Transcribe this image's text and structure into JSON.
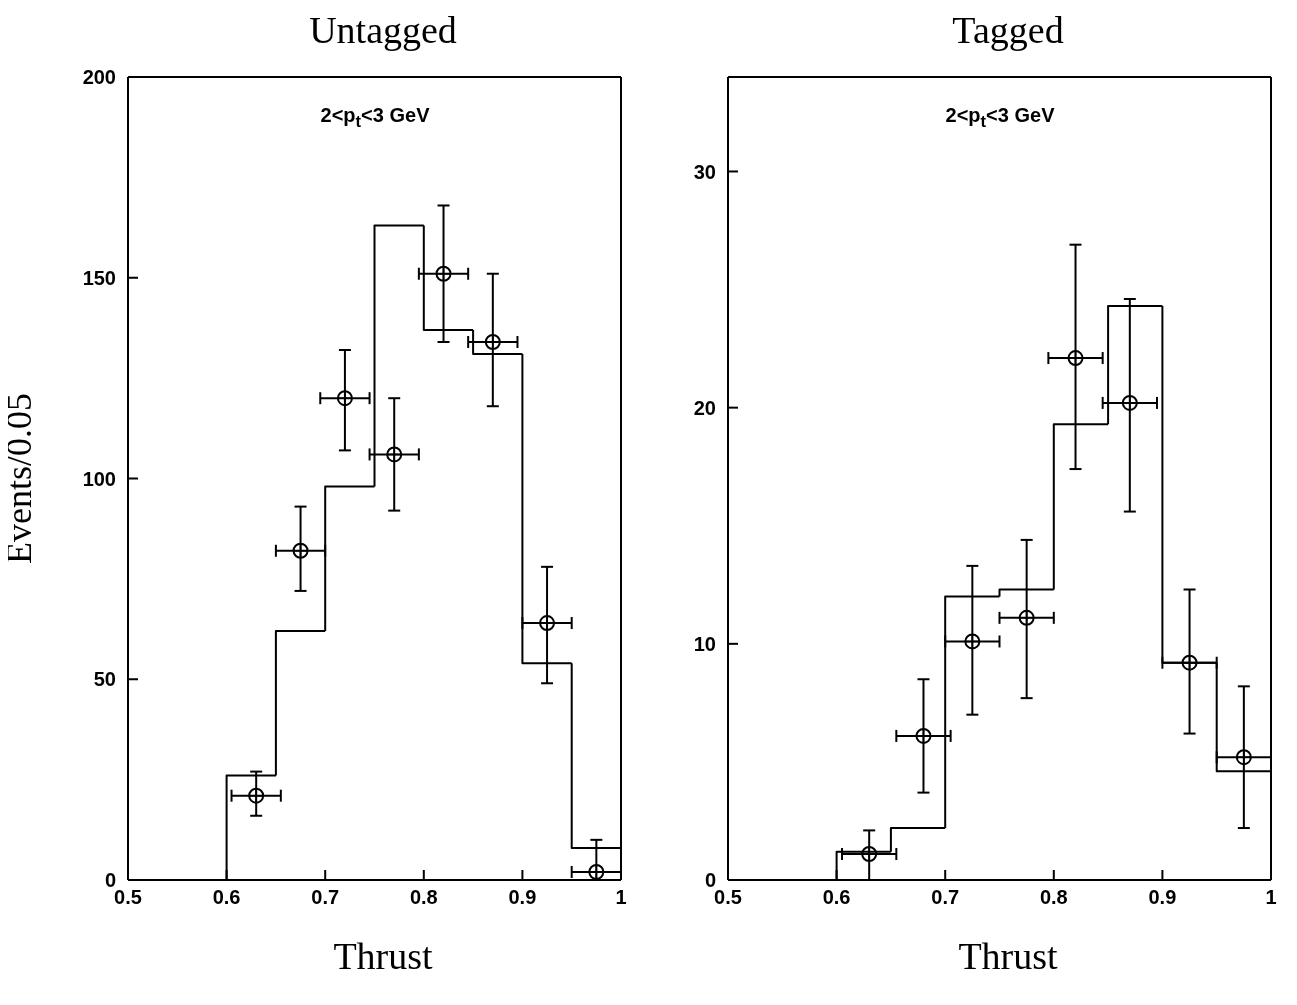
{
  "chart_data": [
    {
      "type": "histogram",
      "title": "Untagged",
      "xlabel": "Thrust",
      "ylabel": "Events/0.05",
      "annotations": [
        "2<p$_{t}$<3 GeV"
      ],
      "bins": [
        0.6,
        0.65,
        0.7,
        0.75,
        0.8,
        0.85,
        0.9,
        0.95,
        1
      ],
      "values": [
        26,
        62,
        98,
        163,
        137,
        131,
        54,
        8
      ],
      "color": "#000000",
      "series": [
        {
          "type": "scatter",
          "x": [
            0.63,
            0.675,
            0.72,
            0.77,
            0.82,
            0.87,
            0.925,
            0.975
          ],
          "values": [
            21,
            82,
            120,
            106,
            151,
            134,
            64,
            2
          ],
          "errors": [
            [
              16,
              27
            ],
            [
              72,
              93
            ],
            [
              107,
              132
            ],
            [
              92,
              120
            ],
            [
              134,
              168
            ],
            [
              118,
              151
            ],
            [
              49,
              78
            ],
            [
              0,
              10
            ]
          ],
          "xerrors": [
            0.025,
            0.025,
            0.025,
            0.025,
            0.025,
            0.025,
            0.025,
            0.025
          ],
          "color": "#000000",
          "marker": "circle"
        }
      ],
      "xlim": [
        0.5,
        1
      ],
      "xticks": [
        0.5,
        0.6,
        0.7,
        0.8,
        0.9,
        1
      ],
      "ylim": [
        0,
        200
      ],
      "yticks": [
        0,
        50,
        100,
        150,
        200
      ]
    },
    {
      "type": "histogram",
      "title": "Tagged",
      "xlabel": "Thrust",
      "annotations": [
        "2<p$_{t}$<3 GeV"
      ],
      "bins": [
        0.6,
        0.65,
        0.7,
        0.75,
        0.8,
        0.85,
        0.9,
        0.95,
        1
      ],
      "values": [
        1.2,
        2.2,
        12,
        12.3,
        19.3,
        24.3,
        9.2,
        4.6
      ],
      "color": "#000000",
      "series": [
        {
          "type": "scatter",
          "x": [
            0.63,
            0.68,
            0.725,
            0.775,
            0.82,
            0.87,
            0.925,
            0.975
          ],
          "values": [
            1.1,
            6.1,
            10.1,
            11.1,
            22.1,
            20.2,
            9.2,
            5.2
          ],
          "errors": [
            [
              0,
              2.1
            ],
            [
              3.7,
              8.5
            ],
            [
              7.0,
              13.3
            ],
            [
              7.7,
              14.4
            ],
            [
              17.4,
              26.9
            ],
            [
              15.6,
              24.6
            ],
            [
              6.2,
              12.3
            ],
            [
              2.2,
              8.2
            ]
          ],
          "xerrors": [
            0.025,
            0.025,
            0.025,
            0.025,
            0.025,
            0.025,
            0.025,
            0.025
          ],
          "color": "#000000",
          "marker": "circle"
        }
      ],
      "xlim": [
        0.5,
        1
      ],
      "xticks": [
        0.5,
        0.6,
        0.7,
        0.8,
        0.9,
        1
      ],
      "ylim": [
        0,
        34
      ],
      "yticks": [
        0,
        10,
        20,
        30
      ]
    }
  ]
}
